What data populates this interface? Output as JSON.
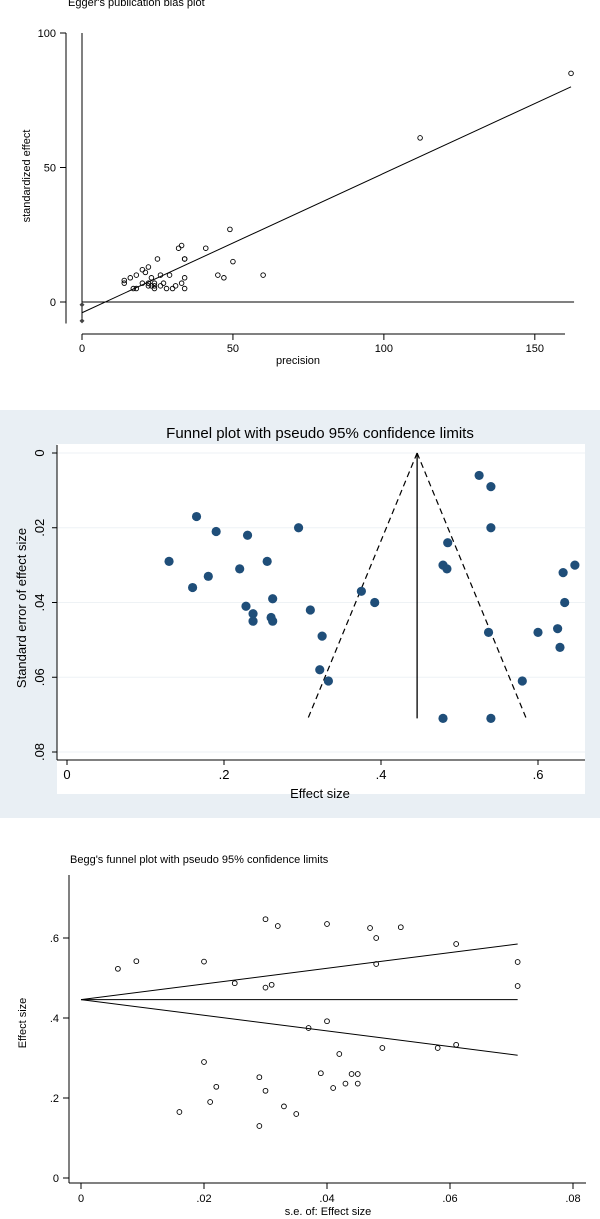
{
  "chart_data": [
    {
      "type": "scatter",
      "title": "Egger's publication bias plot",
      "xlabel": "precision",
      "ylabel": "standardized effect",
      "xlim": [
        0,
        163
      ],
      "ylim": [
        -8,
        100
      ],
      "xticks": [
        "0",
        "50",
        "100",
        "150"
      ],
      "yticks": [
        "0",
        "50",
        "100"
      ],
      "grid": false,
      "fit_line": {
        "x": [
          0,
          162
        ],
        "y": [
          -4,
          80
        ]
      },
      "zero_line": {
        "x": [
          0,
          163
        ],
        "y": 0
      },
      "intercept_markers": [
        {
          "x": 0,
          "y": -1
        },
        {
          "x": 0,
          "y": -7
        }
      ],
      "points": [
        [
          162,
          85
        ],
        [
          112,
          61
        ],
        [
          49,
          27
        ],
        [
          50,
          15
        ],
        [
          60,
          10
        ],
        [
          41,
          20
        ],
        [
          33,
          21
        ],
        [
          34,
          16
        ],
        [
          32,
          20
        ],
        [
          34,
          16
        ],
        [
          34,
          9
        ],
        [
          33,
          7
        ],
        [
          34,
          5
        ],
        [
          31,
          6
        ],
        [
          29,
          10
        ],
        [
          45,
          10
        ],
        [
          47,
          9
        ],
        [
          25,
          16
        ],
        [
          26,
          10
        ],
        [
          27,
          7
        ],
        [
          28,
          5
        ],
        [
          24,
          7
        ],
        [
          24,
          6
        ],
        [
          22,
          7
        ],
        [
          22,
          6
        ],
        [
          23,
          6
        ],
        [
          23,
          9
        ],
        [
          20,
          12
        ],
        [
          21,
          11
        ],
        [
          22,
          13
        ],
        [
          18,
          10
        ],
        [
          16,
          9
        ],
        [
          17,
          5
        ],
        [
          18,
          5
        ],
        [
          14,
          8
        ],
        [
          14,
          7
        ],
        [
          26,
          6
        ],
        [
          20,
          7
        ],
        [
          24,
          5
        ],
        [
          30,
          5
        ]
      ]
    },
    {
      "type": "scatter",
      "title": "Funnel plot with pseudo 95% confidence limits",
      "xlabel": "Effect size",
      "ylabel": "Standard error of effect size",
      "xlim": [
        0,
        0.65
      ],
      "ylim": [
        0.08,
        0
      ],
      "xticks": [
        "0",
        ".2",
        ".4",
        ".6"
      ],
      "yticks": [
        "0",
        ".02",
        ".04",
        ".06",
        ".08"
      ],
      "grid": true,
      "pooled_effect": 0.446,
      "funnel_base_se": 0.071,
      "funnel_limits": [
        0.307,
        0.585
      ],
      "points": [
        [
          0.13,
          0.029
        ],
        [
          0.165,
          0.017
        ],
        [
          0.16,
          0.036
        ],
        [
          0.18,
          0.033
        ],
        [
          0.19,
          0.021
        ],
        [
          0.22,
          0.031
        ],
        [
          0.23,
          0.022
        ],
        [
          0.228,
          0.041
        ],
        [
          0.237,
          0.043
        ],
        [
          0.237,
          0.045
        ],
        [
          0.255,
          0.029
        ],
        [
          0.262,
          0.039
        ],
        [
          0.26,
          0.044
        ],
        [
          0.262,
          0.045
        ],
        [
          0.295,
          0.02
        ],
        [
          0.31,
          0.042
        ],
        [
          0.325,
          0.049
        ],
        [
          0.322,
          0.058
        ],
        [
          0.333,
          0.061
        ],
        [
          0.375,
          0.037
        ],
        [
          0.392,
          0.04
        ],
        [
          0.479,
          0.03
        ],
        [
          0.485,
          0.024
        ],
        [
          0.484,
          0.031
        ],
        [
          0.525,
          0.006
        ],
        [
          0.54,
          0.009
        ],
        [
          0.54,
          0.02
        ],
        [
          0.537,
          0.048
        ],
        [
          0.479,
          0.071
        ],
        [
          0.54,
          0.071
        ],
        [
          0.58,
          0.061
        ],
        [
          0.6,
          0.048
        ],
        [
          0.625,
          0.047
        ],
        [
          0.628,
          0.052
        ],
        [
          0.632,
          0.032
        ],
        [
          0.634,
          0.04
        ],
        [
          0.647,
          0.03
        ]
      ]
    },
    {
      "type": "scatter",
      "title": "Begg's funnel plot with pseudo 95% confidence limits",
      "xlabel": "s.e. of: Effect size",
      "ylabel": "Effect size",
      "xlim": [
        -0.002,
        0.081
      ],
      "ylim": [
        -0.01,
        0.67
      ],
      "xticks": [
        "0",
        ".02",
        ".04",
        ".06",
        ".08"
      ],
      "yticks": [
        "0",
        ".2",
        ".4",
        ".6"
      ],
      "grid": false,
      "pooled_effect": 0.446,
      "limit_end_se": 0.071,
      "limit_end_values": [
        0.585,
        0.307
      ],
      "points": [
        [
          0.006,
          0.523
        ],
        [
          0.009,
          0.542
        ],
        [
          0.016,
          0.165
        ],
        [
          0.02,
          0.541
        ],
        [
          0.02,
          0.29
        ],
        [
          0.021,
          0.19
        ],
        [
          0.022,
          0.228
        ],
        [
          0.025,
          0.487
        ],
        [
          0.029,
          0.13
        ],
        [
          0.029,
          0.252
        ],
        [
          0.03,
          0.647
        ],
        [
          0.03,
          0.218
        ],
        [
          0.03,
          0.476
        ],
        [
          0.031,
          0.483
        ],
        [
          0.032,
          0.63
        ],
        [
          0.033,
          0.179
        ],
        [
          0.035,
          0.16
        ],
        [
          0.037,
          0.375
        ],
        [
          0.039,
          0.262
        ],
        [
          0.04,
          0.392
        ],
        [
          0.04,
          0.635
        ],
        [
          0.041,
          0.225
        ],
        [
          0.042,
          0.31
        ],
        [
          0.043,
          0.236
        ],
        [
          0.044,
          0.26
        ],
        [
          0.045,
          0.26
        ],
        [
          0.045,
          0.236
        ],
        [
          0.047,
          0.625
        ],
        [
          0.048,
          0.6
        ],
        [
          0.048,
          0.535
        ],
        [
          0.049,
          0.325
        ],
        [
          0.052,
          0.627
        ],
        [
          0.058,
          0.325
        ],
        [
          0.061,
          0.585
        ],
        [
          0.061,
          0.333
        ],
        [
          0.071,
          0.54
        ],
        [
          0.071,
          0.48
        ]
      ]
    }
  ]
}
